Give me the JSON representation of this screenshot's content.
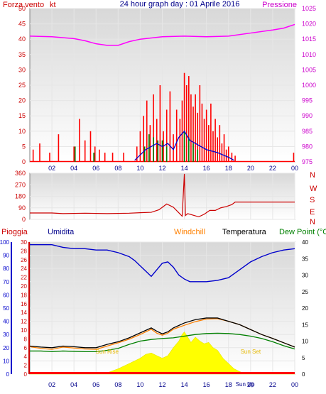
{
  "header": {
    "wind_title": "Forza vento",
    "wind_unit": "kt",
    "center_title": "24 hour graph day : 01 Aprile 2016",
    "pressure_title": "Pressione"
  },
  "colors": {
    "wind": "#ff0000",
    "gust": "#ff0000",
    "pressure": "#ff00ff",
    "humidity": "#0000cc",
    "windchill": "#ff8000",
    "temperature": "#000000",
    "dewpoint": "#008000",
    "rain": "#ff0000",
    "solar": "#ffff00",
    "direction": "#cc0000"
  },
  "chart_data": [
    {
      "id": "wind_pressure",
      "type": "bar",
      "title": "24 hour graph day : 01 Aprile 2016",
      "left_label": "Forza vento",
      "right_label": "Pressione",
      "x_ticks": [
        "02",
        "04",
        "06",
        "08",
        "10",
        "12",
        "14",
        "16",
        "18",
        "20",
        "22",
        "00"
      ],
      "left_ticks": [
        0,
        5,
        10,
        15,
        20,
        25,
        30,
        35,
        40,
        45,
        50
      ],
      "right_ticks": [
        975,
        980,
        985,
        990,
        995,
        1000,
        1005,
        1010,
        1015,
        1020,
        1025
      ],
      "ylim_left": [
        0,
        50
      ],
      "ylim_right": [
        975,
        1025
      ],
      "x_range_hours": [
        0,
        24
      ],
      "series": [
        {
          "name": "Pressione",
          "kind": "line",
          "axis": "right",
          "x": [
            0,
            2,
            4,
            5,
            6,
            7,
            8,
            9,
            10,
            12,
            14,
            16,
            18,
            20,
            22,
            23,
            24
          ],
          "y": [
            1016,
            1015.8,
            1015.2,
            1014.5,
            1013.5,
            1013.0,
            1013.0,
            1014.2,
            1015.0,
            1015.8,
            1016.0,
            1015.8,
            1016.0,
            1017.0,
            1018.0,
            1018.6,
            1019.8
          ]
        },
        {
          "kind": "bars",
          "axis": "left",
          "x": [
            0.3,
            0.9,
            1.8,
            2.6,
            4.0,
            4.5,
            5.0,
            5.5,
            5.9,
            6.3,
            6.8,
            7.5,
            8.5,
            9.7,
            10.0,
            10.3,
            10.6,
            10.9,
            11.2,
            11.5,
            11.8,
            12.1,
            12.4,
            12.7,
            13.0,
            13.3,
            13.6,
            13.8,
            14.0,
            14.2,
            14.4,
            14.6,
            14.8,
            15.0,
            15.2,
            15.4,
            15.6,
            15.8,
            16.0,
            16.2,
            16.4,
            16.6,
            16.8,
            17.0,
            17.2,
            17.4,
            17.6,
            17.8,
            18.0,
            18.3,
            18.6,
            23.9
          ],
          "y": [
            4,
            6,
            3,
            9,
            5,
            14,
            7,
            10,
            5,
            4,
            3,
            3,
            3,
            5,
            10,
            15,
            20,
            12,
            22,
            14,
            25,
            10,
            17,
            23,
            9,
            17,
            14,
            20,
            29,
            25,
            28,
            22,
            18,
            22,
            16,
            25,
            19,
            14,
            17,
            12,
            19,
            10,
            14,
            8,
            12,
            6,
            9,
            4,
            5,
            3,
            2,
            3
          ]
        },
        {
          "kind": "bars",
          "axis": "left",
          "x": [
            4.1,
            5.8,
            10.4,
            10.8,
            11.2,
            11.6,
            12.0,
            12.4,
            14.0,
            14.4,
            14.8,
            15.2
          ],
          "y": [
            5,
            3,
            5,
            9,
            8,
            7,
            7,
            5,
            10,
            8,
            6,
            4
          ]
        },
        {
          "kind": "line",
          "axis": "left",
          "x": [
            9.5,
            10.5,
            11.5,
            12.0,
            12.5,
            13.0,
            13.5,
            14.0,
            14.5,
            15.0,
            15.5,
            16.0,
            17.0,
            18.0,
            18.5
          ],
          "y": [
            0.5,
            4,
            6,
            5,
            6,
            4,
            8,
            10,
            7,
            6,
            5,
            4,
            3,
            1.5,
            0.5
          ]
        }
      ]
    },
    {
      "id": "wind_direction",
      "type": "line",
      "left_ticks": [
        0,
        90,
        180,
        270,
        360
      ],
      "right_labels": [
        "N",
        "W",
        "S",
        "E",
        "N"
      ],
      "ylim": [
        0,
        360
      ],
      "x_range_hours": [
        0,
        24
      ],
      "x": [
        0,
        2,
        3,
        5,
        7,
        9,
        10,
        11,
        11.7,
        12.4,
        13.0,
        13.4,
        13.8,
        14.0,
        14.1,
        14.3,
        14.7,
        15.3,
        15.8,
        16.3,
        16.8,
        17.3,
        17.8,
        18.3,
        18.6,
        24
      ],
      "y": [
        50,
        50,
        45,
        48,
        45,
        48,
        52,
        55,
        75,
        120,
        95,
        60,
        25,
        355,
        30,
        45,
        35,
        20,
        40,
        70,
        70,
        90,
        100,
        115,
        135,
        135
      ]
    },
    {
      "id": "hum_temp",
      "type": "line",
      "labels": {
        "rain": "Pioggia",
        "humidity": "Umidita",
        "windchill": "Windchill",
        "temperature": "Temperatura",
        "dewpoint": "Dew Point (°C"
      },
      "rain_ticks": [
        0,
        2,
        4,
        6,
        8,
        10,
        12,
        14,
        16,
        18,
        20,
        22,
        24,
        26,
        28,
        30
      ],
      "humidity_ticks": [
        0,
        10,
        20,
        30,
        40,
        50,
        60,
        70,
        80,
        90,
        100
      ],
      "temp_ticks": [
        0,
        5,
        10,
        15,
        20,
        25,
        30,
        35,
        40
      ],
      "x_ticks": [
        "02",
        "04",
        "06",
        "08",
        "10",
        "12",
        "14",
        "16",
        "18",
        "20",
        "22",
        "00"
      ],
      "annotations": [
        {
          "text": "Sun Rise",
          "x": 7.0
        },
        {
          "text": "Sun Set",
          "x": 20.0
        },
        {
          "text": "Sun Up",
          "x": 19.5
        }
      ],
      "series": [
        {
          "name": "Umidita",
          "axis": "humidity",
          "x": [
            0,
            1,
            2,
            3,
            4,
            5,
            6,
            7,
            8,
            9,
            9.5,
            10,
            10.5,
            11,
            11.5,
            12,
            12.5,
            13,
            13.5,
            14,
            14.5,
            15,
            16,
            17,
            18,
            19,
            20,
            21,
            22,
            23,
            24
          ],
          "y": [
            98,
            98,
            98,
            96,
            95,
            95,
            94,
            94,
            92,
            89,
            86,
            82,
            78,
            74,
            79,
            84,
            85,
            81,
            75,
            72,
            70,
            70,
            70,
            71,
            73,
            79,
            85,
            89,
            92,
            94,
            95
          ]
        },
        {
          "name": "Temperatura",
          "axis": "temp",
          "x": [
            0,
            1,
            2,
            3,
            4,
            5,
            6,
            7,
            8,
            9,
            10,
            11,
            11.5,
            12,
            12.5,
            13,
            14,
            15,
            16,
            17,
            18,
            19,
            20,
            21,
            22,
            23,
            24
          ],
          "y": [
            8.5,
            8.2,
            8.0,
            8.5,
            8.3,
            8.0,
            8.0,
            9.0,
            9.8,
            11.0,
            12.5,
            14.0,
            13.0,
            12.2,
            12.8,
            14.0,
            15.5,
            16.5,
            17.0,
            17.0,
            16.0,
            15.0,
            13.5,
            12.0,
            10.8,
            9.5,
            8.2
          ]
        },
        {
          "name": "Windchill",
          "axis": "temp",
          "x": [
            0,
            1,
            2,
            3,
            4,
            5,
            6,
            7,
            8,
            9,
            10,
            11,
            11.5,
            12,
            12.5,
            13,
            14,
            15,
            16,
            17,
            18,
            19,
            20,
            21,
            22,
            23,
            24
          ],
          "y": [
            8.3,
            7.8,
            7.5,
            8.2,
            7.9,
            7.6,
            7.5,
            8.5,
            9.5,
            10.6,
            12.0,
            13.6,
            12.4,
            11.8,
            12.4,
            13.6,
            14.8,
            15.9,
            16.7,
            16.8,
            16.0,
            15.0,
            13.5,
            12.0,
            10.8,
            9.5,
            8.2
          ]
        },
        {
          "name": "Dew Point",
          "axis": "temp",
          "x": [
            0,
            1,
            2,
            3,
            4,
            5,
            6,
            7,
            8,
            9,
            10,
            11,
            12,
            13,
            14,
            15,
            16,
            17,
            18,
            19,
            20,
            21,
            22,
            23,
            24
          ],
          "y": [
            7.0,
            7.0,
            6.8,
            7.0,
            6.9,
            6.8,
            6.8,
            7.2,
            7.8,
            9.0,
            10.0,
            10.5,
            10.8,
            11.0,
            11.5,
            12.0,
            12.3,
            12.4,
            12.3,
            12.0,
            11.5,
            10.8,
            9.8,
            8.6,
            7.6
          ]
        },
        {
          "name": "Solar",
          "axis": "humidity",
          "x": [
            0,
            6.5,
            7.0,
            8.0,
            9.0,
            10.0,
            10.5,
            11.0,
            11.5,
            12.0,
            12.5,
            13.0,
            13.5,
            13.8,
            14.0,
            14.3,
            14.6,
            15.0,
            15.4,
            15.8,
            16.2,
            16.6,
            17.0,
            17.5,
            18.0,
            18.5,
            19.0,
            19.5,
            24
          ],
          "y": [
            0,
            0,
            1,
            4,
            8,
            12,
            15,
            16,
            14,
            12,
            14,
            20,
            25,
            30,
            32,
            28,
            24,
            28,
            25,
            23,
            24,
            20,
            18,
            12,
            8,
            4,
            2,
            0,
            0
          ]
        }
      ]
    }
  ]
}
